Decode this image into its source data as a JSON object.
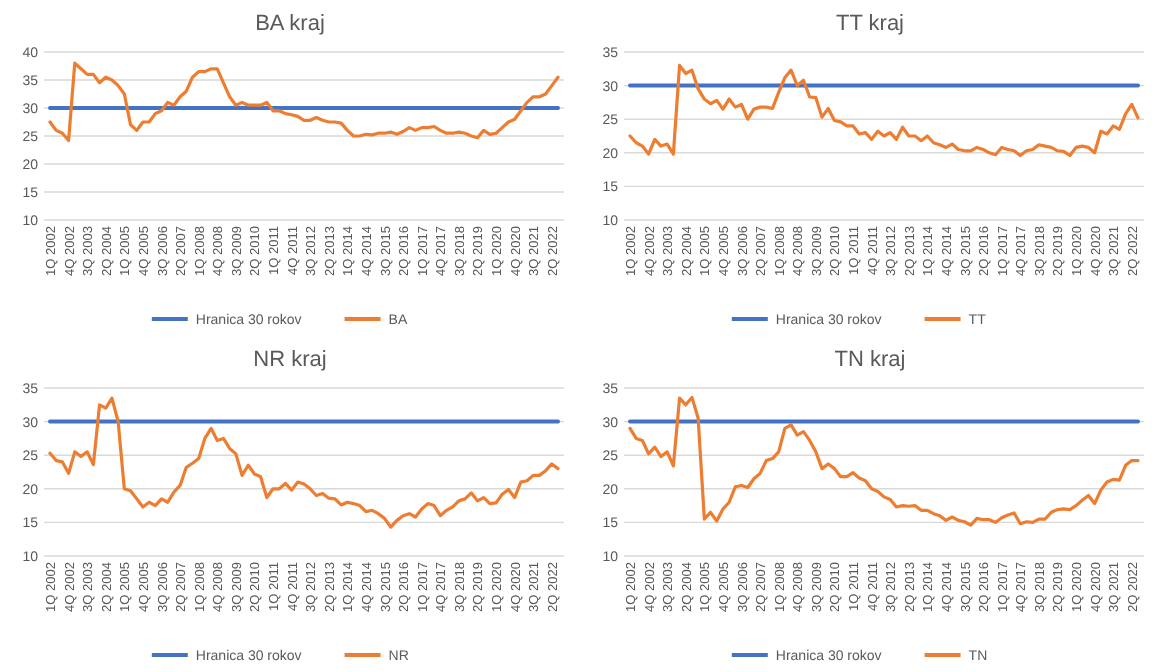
{
  "chart_data": [
    {
      "type": "line",
      "title": "BA kraj",
      "categories": [
        "1Q 2002",
        null,
        null,
        "4Q 2002",
        null,
        null,
        "3Q 2003",
        null,
        null,
        "2Q 2004",
        null,
        null,
        "1Q 2005",
        null,
        null,
        "4Q 2005",
        null,
        null,
        "3Q 2006",
        null,
        null,
        "2Q 2007",
        null,
        null,
        "1Q 2008",
        null,
        null,
        "4Q 2008",
        null,
        null,
        "3Q 2009",
        null,
        null,
        "2Q 2010",
        null,
        null,
        "1Q 2011",
        null,
        null,
        "4Q 2011",
        null,
        null,
        "3Q 2012",
        null,
        null,
        "2Q 2013",
        null,
        null,
        "1Q 2014",
        null,
        null,
        "4Q 2014",
        null,
        null,
        "3Q 2015",
        null,
        null,
        "2Q 2016",
        null,
        null,
        "1Q 2017",
        null,
        null,
        "4Q 2017",
        null,
        null,
        "3Q 2018",
        null,
        null,
        "2Q 2019",
        null,
        null,
        "1Q 2020",
        null,
        null,
        "4Q 2020",
        null,
        null,
        "3Q 2021",
        null,
        null,
        "2Q 2022",
        null
      ],
      "series": [
        {
          "name": "Hranica 30 rokov",
          "color": "#4472c4",
          "values": [
            30,
            30,
            30,
            30,
            30,
            30,
            30,
            30,
            30,
            30,
            30,
            30,
            30,
            30,
            30,
            30,
            30,
            30,
            30,
            30,
            30,
            30,
            30,
            30,
            30,
            30,
            30,
            30,
            30,
            30,
            30,
            30,
            30,
            30,
            30,
            30,
            30,
            30,
            30,
            30,
            30,
            30,
            30,
            30,
            30,
            30,
            30,
            30,
            30,
            30,
            30,
            30,
            30,
            30,
            30,
            30,
            30,
            30,
            30,
            30,
            30,
            30,
            30,
            30,
            30,
            30,
            30,
            30,
            30,
            30,
            30,
            30,
            30,
            30,
            30,
            30,
            30,
            30,
            30,
            30,
            30,
            30,
            30
          ]
        },
        {
          "name": "BA",
          "color": "#ed7d31",
          "values": [
            27.5,
            26,
            25.5,
            24.2,
            38,
            37,
            36,
            36,
            34.5,
            35.5,
            35,
            34,
            32.5,
            27,
            26,
            27.5,
            27.5,
            29,
            29.5,
            31,
            30.5,
            32,
            33,
            35.5,
            36.5,
            36.5,
            37,
            37,
            34.5,
            32,
            30.5,
            31,
            30.5,
            30.5,
            30.5,
            31,
            29.5,
            29.5,
            29,
            28.8,
            28.5,
            27.8,
            27.8,
            28.3,
            27.8,
            27.5,
            27.5,
            27.3,
            26,
            25,
            25,
            25.3,
            25.2,
            25.5,
            25.5,
            25.7,
            25.3,
            25.8,
            26.5,
            26,
            26.5,
            26.5,
            26.7,
            26,
            25.5,
            25.5,
            25.7,
            25.5,
            25,
            24.7,
            26,
            25.3,
            25.5,
            26.5,
            27.5,
            28,
            29.5,
            31,
            32,
            32,
            32.5,
            34,
            35.5
          ]
        }
      ],
      "ylim": [
        10,
        40
      ],
      "yticks": [
        10,
        15,
        20,
        25,
        30,
        35,
        40
      ],
      "grid": "y",
      "legend": "bottom",
      "line_style": "solid",
      "marker": "none"
    },
    {
      "type": "line",
      "title": "TT kraj",
      "categories": [
        "1Q 2002",
        null,
        null,
        "4Q 2002",
        null,
        null,
        "3Q 2003",
        null,
        null,
        "2Q 2004",
        null,
        null,
        "1Q 2005",
        null,
        null,
        "4Q 2005",
        null,
        null,
        "3Q 2006",
        null,
        null,
        "2Q 2007",
        null,
        null,
        "1Q 2008",
        null,
        null,
        "4Q 2008",
        null,
        null,
        "3Q 2009",
        null,
        null,
        "2Q 2010",
        null,
        null,
        "1Q 2011",
        null,
        null,
        "4Q 2011",
        null,
        null,
        "3Q 2012",
        null,
        null,
        "2Q 2013",
        null,
        null,
        "1Q 2014",
        null,
        null,
        "4Q 2014",
        null,
        null,
        "3Q 2015",
        null,
        null,
        "2Q 2016",
        null,
        null,
        "1Q 2017",
        null,
        null,
        "4Q 2017",
        null,
        null,
        "3Q 2018",
        null,
        null,
        "2Q 2019",
        null,
        null,
        "1Q 2020",
        null,
        null,
        "4Q 2020",
        null,
        null,
        "3Q 2021",
        null,
        null,
        "2Q 2022",
        null
      ],
      "series": [
        {
          "name": "Hranica 30 rokov",
          "color": "#4472c4",
          "values": [
            30,
            30,
            30,
            30,
            30,
            30,
            30,
            30,
            30,
            30,
            30,
            30,
            30,
            30,
            30,
            30,
            30,
            30,
            30,
            30,
            30,
            30,
            30,
            30,
            30,
            30,
            30,
            30,
            30,
            30,
            30,
            30,
            30,
            30,
            30,
            30,
            30,
            30,
            30,
            30,
            30,
            30,
            30,
            30,
            30,
            30,
            30,
            30,
            30,
            30,
            30,
            30,
            30,
            30,
            30,
            30,
            30,
            30,
            30,
            30,
            30,
            30,
            30,
            30,
            30,
            30,
            30,
            30,
            30,
            30,
            30,
            30,
            30,
            30,
            30,
            30,
            30,
            30,
            30,
            30,
            30,
            30,
            30
          ]
        },
        {
          "name": "TT",
          "color": "#ed7d31",
          "values": [
            22.5,
            21.5,
            21,
            19.8,
            22,
            21,
            21.3,
            19.8,
            33,
            31.8,
            32.3,
            29.5,
            28,
            27.3,
            27.8,
            26.5,
            28,
            26.8,
            27.2,
            25,
            26.5,
            26.8,
            26.8,
            26.6,
            29,
            31.2,
            32.3,
            30,
            30.8,
            28.3,
            28.2,
            25.3,
            26.6,
            24.8,
            24.6,
            24,
            24,
            22.8,
            23,
            22,
            23.2,
            22.5,
            23,
            22,
            23.8,
            22.5,
            22.5,
            21.8,
            22.5,
            21.5,
            21.2,
            20.8,
            21.3,
            20.5,
            20.3,
            20.3,
            20.8,
            20.5,
            20,
            19.7,
            20.8,
            20.5,
            20.3,
            19.6,
            20.3,
            20.5,
            21.2,
            21,
            20.8,
            20.3,
            20.2,
            19.6,
            20.8,
            21,
            20.8,
            20,
            23.2,
            22.8,
            24,
            23.5,
            25.8,
            27.2,
            25.2
          ]
        }
      ],
      "ylim": [
        10,
        35
      ],
      "yticks": [
        10,
        15,
        20,
        25,
        30,
        35
      ],
      "grid": "y",
      "legend": "bottom",
      "line_style": "solid",
      "marker": "none"
    },
    {
      "type": "line",
      "title": "NR kraj",
      "categories": [
        "1Q 2002",
        null,
        null,
        "4Q 2002",
        null,
        null,
        "3Q 2003",
        null,
        null,
        "2Q 2004",
        null,
        null,
        "1Q 2005",
        null,
        null,
        "4Q 2005",
        null,
        null,
        "3Q 2006",
        null,
        null,
        "2Q 2007",
        null,
        null,
        "1Q 2008",
        null,
        null,
        "4Q 2008",
        null,
        null,
        "3Q 2009",
        null,
        null,
        "2Q 2010",
        null,
        null,
        "1Q 2011",
        null,
        null,
        "4Q 2011",
        null,
        null,
        "3Q 2012",
        null,
        null,
        "2Q 2013",
        null,
        null,
        "1Q 2014",
        null,
        null,
        "4Q 2014",
        null,
        null,
        "3Q 2015",
        null,
        null,
        "2Q 2016",
        null,
        null,
        "1Q 2017",
        null,
        null,
        "4Q 2017",
        null,
        null,
        "3Q 2018",
        null,
        null,
        "2Q 2019",
        null,
        null,
        "1Q 2020",
        null,
        null,
        "4Q 2020",
        null,
        null,
        "3Q 2021",
        null,
        null,
        "2Q 2022",
        null
      ],
      "series": [
        {
          "name": "Hranica 30 rokov",
          "color": "#4472c4",
          "values": [
            30,
            30,
            30,
            30,
            30,
            30,
            30,
            30,
            30,
            30,
            30,
            30,
            30,
            30,
            30,
            30,
            30,
            30,
            30,
            30,
            30,
            30,
            30,
            30,
            30,
            30,
            30,
            30,
            30,
            30,
            30,
            30,
            30,
            30,
            30,
            30,
            30,
            30,
            30,
            30,
            30,
            30,
            30,
            30,
            30,
            30,
            30,
            30,
            30,
            30,
            30,
            30,
            30,
            30,
            30,
            30,
            30,
            30,
            30,
            30,
            30,
            30,
            30,
            30,
            30,
            30,
            30,
            30,
            30,
            30,
            30,
            30,
            30,
            30,
            30,
            30,
            30,
            30,
            30,
            30,
            30,
            30,
            30
          ]
        },
        {
          "name": "NR",
          "color": "#ed7d31",
          "values": [
            25.3,
            24.2,
            24,
            22.3,
            25.5,
            24.8,
            25.5,
            23.6,
            32.5,
            32,
            33.5,
            30,
            20,
            19.7,
            18.5,
            17.3,
            18,
            17.5,
            18.5,
            18,
            19.5,
            20.5,
            23.2,
            23.8,
            24.5,
            27.5,
            29,
            27.2,
            27.5,
            26,
            25.2,
            22,
            23.5,
            22.2,
            21.8,
            18.7,
            20,
            20,
            20.8,
            19.8,
            21,
            20.7,
            20,
            19,
            19.3,
            18.6,
            18.5,
            17.6,
            18,
            17.8,
            17.5,
            16.6,
            16.8,
            16.3,
            15.6,
            14.3,
            15.3,
            16,
            16.3,
            15.8,
            17,
            17.8,
            17.5,
            16,
            16.8,
            17.3,
            18.2,
            18.5,
            19.4,
            18.2,
            18.7,
            17.8,
            17.9,
            19.2,
            19.9,
            18.7,
            21,
            21.2,
            22,
            22,
            22.7,
            23.7,
            23
          ]
        }
      ],
      "ylim": [
        10,
        35
      ],
      "yticks": [
        10,
        15,
        20,
        25,
        30,
        35
      ],
      "grid": "y",
      "legend": "bottom",
      "line_style": "solid",
      "marker": "none"
    },
    {
      "type": "line",
      "title": "TN kraj",
      "categories": [
        "1Q 2002",
        null,
        null,
        "4Q 2002",
        null,
        null,
        "3Q 2003",
        null,
        null,
        "2Q 2004",
        null,
        null,
        "1Q 2005",
        null,
        null,
        "4Q 2005",
        null,
        null,
        "3Q 2006",
        null,
        null,
        "2Q 2007",
        null,
        null,
        "1Q 2008",
        null,
        null,
        "4Q 2008",
        null,
        null,
        "3Q 2009",
        null,
        null,
        "2Q 2010",
        null,
        null,
        "1Q 2011",
        null,
        null,
        "4Q 2011",
        null,
        null,
        "3Q 2012",
        null,
        null,
        "2Q 2013",
        null,
        null,
        "1Q 2014",
        null,
        null,
        "4Q 2014",
        null,
        null,
        "3Q 2015",
        null,
        null,
        "2Q 2016",
        null,
        null,
        "1Q 2017",
        null,
        null,
        "4Q 2017",
        null,
        null,
        "3Q 2018",
        null,
        null,
        "2Q 2019",
        null,
        null,
        "1Q 2020",
        null,
        null,
        "4Q 2020",
        null,
        null,
        "3Q 2021",
        null,
        null,
        "2Q 2022",
        null
      ],
      "series": [
        {
          "name": "Hranica 30 rokov",
          "color": "#4472c4",
          "values": [
            30,
            30,
            30,
            30,
            30,
            30,
            30,
            30,
            30,
            30,
            30,
            30,
            30,
            30,
            30,
            30,
            30,
            30,
            30,
            30,
            30,
            30,
            30,
            30,
            30,
            30,
            30,
            30,
            30,
            30,
            30,
            30,
            30,
            30,
            30,
            30,
            30,
            30,
            30,
            30,
            30,
            30,
            30,
            30,
            30,
            30,
            30,
            30,
            30,
            30,
            30,
            30,
            30,
            30,
            30,
            30,
            30,
            30,
            30,
            30,
            30,
            30,
            30,
            30,
            30,
            30,
            30,
            30,
            30,
            30,
            30,
            30,
            30,
            30,
            30,
            30,
            30,
            30,
            30,
            30,
            30,
            30,
            30
          ]
        },
        {
          "name": "TN",
          "color": "#ed7d31",
          "values": [
            29,
            27.5,
            27.2,
            25.2,
            26.2,
            24.8,
            25.5,
            23.4,
            33.5,
            32.5,
            33.6,
            30.5,
            15.5,
            16.5,
            15.2,
            17,
            18,
            20.3,
            20.5,
            20.2,
            21.5,
            22.3,
            24.2,
            24.5,
            25.5,
            29,
            29.5,
            28,
            28.5,
            27.2,
            25.5,
            23,
            23.7,
            23,
            21.8,
            21.8,
            22.4,
            21.6,
            21.2,
            20,
            19.6,
            18.8,
            18.4,
            17.3,
            17.5,
            17.4,
            17.5,
            16.8,
            16.8,
            16.3,
            16,
            15.3,
            15.8,
            15.3,
            15.1,
            14.6,
            15.6,
            15.4,
            15.4,
            15,
            15.7,
            16.1,
            16.4,
            14.8,
            15.1,
            15,
            15.5,
            15.5,
            16.5,
            16.9,
            17,
            16.9,
            17.5,
            18.3,
            19,
            17.8,
            19.8,
            21,
            21.4,
            21.3,
            23.5,
            24.2,
            24.2
          ]
        }
      ],
      "ylim": [
        10,
        35
      ],
      "yticks": [
        10,
        15,
        20,
        25,
        30,
        35
      ],
      "grid": "y",
      "legend": "bottom",
      "line_style": "solid",
      "marker": "none"
    }
  ]
}
